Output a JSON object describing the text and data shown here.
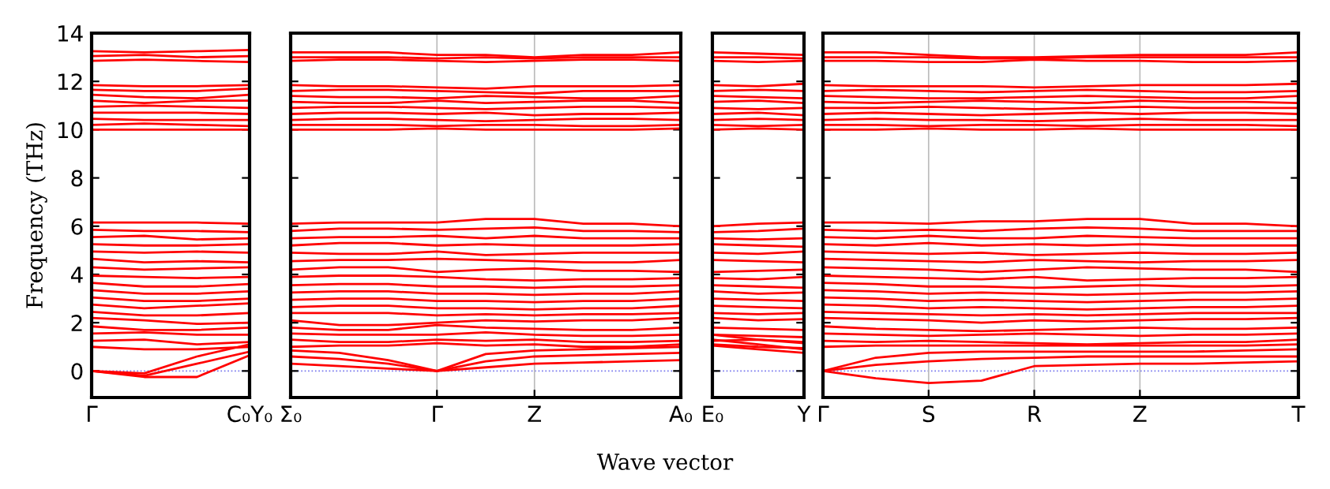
{
  "chart_data": [
    {
      "type": "line",
      "ylabel": "Frequency (THz)",
      "categories": [
        "Γ",
        null,
        null,
        "C₀Y₀"
      ],
      "ylim": [
        -1.1,
        14
      ],
      "yticks": [
        0,
        2,
        4,
        6,
        8,
        10,
        12,
        14
      ],
      "ref_lines": [
        {
          "axis": "y",
          "value": 0,
          "color": "#7777ee",
          "line_style": "dotted"
        }
      ],
      "series": [
        {
          "color": "#ff0000",
          "values": [
            13.25,
            13.2,
            13.25,
            13.3
          ]
        },
        {
          "color": "#ff0000",
          "values": [
            13.05,
            13.1,
            13.0,
            13.05
          ]
        },
        {
          "color": "#ff0000",
          "values": [
            12.85,
            12.9,
            12.85,
            12.8
          ]
        },
        {
          "color": "#ff0000",
          "values": [
            11.85,
            11.8,
            11.8,
            11.85
          ]
        },
        {
          "color": "#ff0000",
          "values": [
            11.65,
            11.6,
            11.6,
            11.7
          ]
        },
        {
          "color": "#ff0000",
          "values": [
            11.45,
            11.35,
            11.3,
            11.45
          ]
        },
        {
          "color": "#ff0000",
          "values": [
            11.2,
            11.1,
            11.2,
            11.2
          ]
        },
        {
          "color": "#ff0000",
          "values": [
            10.95,
            11.0,
            10.95,
            10.9
          ]
        },
        {
          "color": "#ff0000",
          "values": [
            10.7,
            10.7,
            10.7,
            10.65
          ]
        },
        {
          "color": "#ff0000",
          "values": [
            10.45,
            10.4,
            10.4,
            10.4
          ]
        },
        {
          "color": "#ff0000",
          "values": [
            10.2,
            10.25,
            10.2,
            10.15
          ]
        },
        {
          "color": "#ff0000",
          "values": [
            10.0,
            10.0,
            10.0,
            10.0
          ]
        },
        {
          "color": "#ff0000",
          "values": [
            6.15,
            6.15,
            6.15,
            6.1
          ]
        },
        {
          "color": "#ff0000",
          "values": [
            5.85,
            5.8,
            5.8,
            5.75
          ]
        },
        {
          "color": "#ff0000",
          "values": [
            5.55,
            5.6,
            5.45,
            5.5
          ]
        },
        {
          "color": "#ff0000",
          "values": [
            5.25,
            5.2,
            5.2,
            5.25
          ]
        },
        {
          "color": "#ff0000",
          "values": [
            4.95,
            4.9,
            4.95,
            4.9
          ]
        },
        {
          "color": "#ff0000",
          "values": [
            4.65,
            4.5,
            4.55,
            4.5
          ]
        },
        {
          "color": "#ff0000",
          "values": [
            4.3,
            4.2,
            4.25,
            4.3
          ]
        },
        {
          "color": "#ff0000",
          "values": [
            3.95,
            3.9,
            3.85,
            3.9
          ]
        },
        {
          "color": "#ff0000",
          "values": [
            3.65,
            3.5,
            3.5,
            3.6
          ]
        },
        {
          "color": "#ff0000",
          "values": [
            3.35,
            3.2,
            3.2,
            3.3
          ]
        },
        {
          "color": "#ff0000",
          "values": [
            3.05,
            2.9,
            2.9,
            3.0
          ]
        },
        {
          "color": "#ff0000",
          "values": [
            2.75,
            2.6,
            2.7,
            2.8
          ]
        },
        {
          "color": "#ff0000",
          "values": [
            2.45,
            2.3,
            2.3,
            2.4
          ]
        },
        {
          "color": "#ff0000",
          "values": [
            2.2,
            2.1,
            1.95,
            2.0
          ]
        },
        {
          "color": "#ff0000",
          "values": [
            1.85,
            1.7,
            1.7,
            1.8
          ]
        },
        {
          "color": "#ff0000",
          "values": [
            1.55,
            1.6,
            1.5,
            1.5
          ]
        },
        {
          "color": "#ff0000",
          "values": [
            1.25,
            1.3,
            1.1,
            1.2
          ]
        },
        {
          "color": "#ff0000",
          "values": [
            1.0,
            0.9,
            0.9,
            1.0
          ]
        },
        {
          "color": "#ff0000",
          "values": [
            0,
            -0.2,
            0.3,
            0.8
          ]
        },
        {
          "color": "#ff0000",
          "values": [
            0,
            -0.25,
            -0.25,
            0.65
          ]
        },
        {
          "color": "#ff0000",
          "values": [
            0,
            -0.1,
            0.6,
            1.1
          ]
        }
      ]
    },
    {
      "type": "line",
      "xlabel": "Wave vector",
      "tick_labels": "x",
      "categories": [
        "Σ₀",
        null,
        null,
        "Γ",
        null,
        "Z",
        null,
        null,
        "A₀"
      ],
      "ylim": [
        -1.1,
        14
      ],
      "yticks": [
        0,
        2,
        4,
        6,
        8,
        10,
        12,
        14
      ],
      "grid": "x",
      "ref_lines": [
        {
          "axis": "y",
          "value": 0,
          "color": "#7777ee",
          "line_style": "dotted"
        }
      ],
      "series": [
        {
          "color": "#ff0000",
          "values": [
            13.2,
            13.2,
            13.2,
            13.1,
            13.1,
            13.0,
            13.1,
            13.1,
            13.2
          ]
        },
        {
          "color": "#ff0000",
          "values": [
            13.0,
            13.0,
            13.0,
            12.95,
            13.0,
            12.95,
            13.0,
            13.0,
            13.0
          ]
        },
        {
          "color": "#ff0000",
          "values": [
            12.85,
            12.9,
            12.9,
            12.85,
            12.8,
            12.85,
            12.9,
            12.9,
            12.85
          ]
        },
        {
          "color": "#ff0000",
          "values": [
            11.85,
            11.8,
            11.8,
            11.75,
            11.7,
            11.8,
            11.8,
            11.8,
            11.85
          ]
        },
        {
          "color": "#ff0000",
          "values": [
            11.6,
            11.65,
            11.65,
            11.6,
            11.55,
            11.5,
            11.6,
            11.6,
            11.6
          ]
        },
        {
          "color": "#ff0000",
          "values": [
            11.4,
            11.35,
            11.35,
            11.3,
            11.4,
            11.35,
            11.3,
            11.3,
            11.4
          ]
        },
        {
          "color": "#ff0000",
          "values": [
            11.15,
            11.1,
            11.1,
            11.2,
            11.1,
            11.15,
            11.2,
            11.2,
            11.1
          ]
        },
        {
          "color": "#ff0000",
          "values": [
            10.9,
            10.95,
            10.95,
            10.9,
            10.85,
            10.9,
            10.95,
            10.95,
            10.9
          ]
        },
        {
          "color": "#ff0000",
          "values": [
            10.65,
            10.7,
            10.7,
            10.65,
            10.7,
            10.6,
            10.65,
            10.65,
            10.7
          ]
        },
        {
          "color": "#ff0000",
          "values": [
            10.4,
            10.45,
            10.45,
            10.4,
            10.35,
            10.4,
            10.45,
            10.45,
            10.4
          ]
        },
        {
          "color": "#ff0000",
          "values": [
            10.2,
            10.2,
            10.2,
            10.15,
            10.2,
            10.2,
            10.15,
            10.15,
            10.2
          ]
        },
        {
          "color": "#ff0000",
          "values": [
            10.0,
            10.0,
            10.0,
            10.05,
            10.0,
            10.0,
            10.0,
            10.0,
            10.05
          ]
        },
        {
          "color": "#ff0000",
          "values": [
            6.1,
            6.15,
            6.15,
            6.15,
            6.3,
            6.3,
            6.1,
            6.1,
            6.0
          ]
        },
        {
          "color": "#ff0000",
          "values": [
            5.8,
            5.9,
            5.9,
            5.85,
            5.9,
            5.95,
            5.8,
            5.8,
            5.75
          ]
        },
        {
          "color": "#ff0000",
          "values": [
            5.5,
            5.55,
            5.55,
            5.6,
            5.5,
            5.6,
            5.5,
            5.5,
            5.5
          ]
        },
        {
          "color": "#ff0000",
          "values": [
            5.2,
            5.3,
            5.3,
            5.2,
            5.25,
            5.2,
            5.2,
            5.2,
            5.25
          ]
        },
        {
          "color": "#ff0000",
          "values": [
            4.9,
            4.85,
            4.85,
            4.95,
            4.8,
            4.85,
            4.9,
            4.9,
            4.9
          ]
        },
        {
          "color": "#ff0000",
          "values": [
            4.55,
            4.6,
            4.6,
            4.65,
            4.6,
            4.55,
            4.5,
            4.5,
            4.6
          ]
        },
        {
          "color": "#ff0000",
          "values": [
            4.2,
            4.3,
            4.3,
            4.1,
            4.2,
            4.25,
            4.15,
            4.15,
            4.1
          ]
        },
        {
          "color": "#ff0000",
          "values": [
            3.9,
            3.95,
            3.95,
            3.9,
            3.8,
            3.75,
            3.8,
            3.8,
            3.85
          ]
        },
        {
          "color": "#ff0000",
          "values": [
            3.55,
            3.6,
            3.6,
            3.5,
            3.5,
            3.45,
            3.5,
            3.5,
            3.55
          ]
        },
        {
          "color": "#ff0000",
          "values": [
            3.25,
            3.3,
            3.3,
            3.2,
            3.2,
            3.15,
            3.2,
            3.2,
            3.3
          ]
        },
        {
          "color": "#ff0000",
          "values": [
            2.95,
            3.0,
            3.0,
            2.9,
            2.9,
            2.85,
            2.9,
            2.9,
            3.0
          ]
        },
        {
          "color": "#ff0000",
          "values": [
            2.65,
            2.7,
            2.7,
            2.6,
            2.6,
            2.55,
            2.6,
            2.6,
            2.7
          ]
        },
        {
          "color": "#ff0000",
          "values": [
            2.4,
            2.4,
            2.4,
            2.3,
            2.35,
            2.3,
            2.35,
            2.35,
            2.4
          ]
        },
        {
          "color": "#ff0000",
          "values": [
            2.1,
            1.9,
            1.9,
            2.0,
            2.1,
            2.05,
            2.1,
            2.1,
            2.2
          ]
        },
        {
          "color": "#ff0000",
          "values": [
            1.8,
            1.7,
            1.7,
            1.9,
            1.8,
            1.75,
            1.7,
            1.7,
            1.8
          ]
        },
        {
          "color": "#ff0000",
          "values": [
            1.55,
            1.5,
            1.5,
            1.5,
            1.6,
            1.5,
            1.45,
            1.45,
            1.5
          ]
        },
        {
          "color": "#ff0000",
          "values": [
            1.3,
            1.2,
            1.2,
            1.3,
            1.25,
            1.3,
            1.2,
            1.2,
            1.25
          ]
        },
        {
          "color": "#ff0000",
          "values": [
            1.0,
            1.05,
            1.05,
            1.15,
            1.05,
            1.1,
            1.0,
            1.0,
            1.1
          ]
        },
        {
          "color": "#ff0000",
          "values": [
            0.3,
            0.2,
            0.1,
            0,
            0.15,
            0.3,
            0.35,
            0.4,
            0.45
          ]
        },
        {
          "color": "#ff0000",
          "values": [
            0.6,
            0.5,
            0.3,
            0,
            0.4,
            0.6,
            0.65,
            0.7,
            0.75
          ]
        },
        {
          "color": "#ff0000",
          "values": [
            0.85,
            0.75,
            0.45,
            0,
            0.7,
            0.85,
            0.9,
            0.95,
            1.0
          ]
        }
      ]
    },
    {
      "type": "line",
      "tick_labels": "x",
      "categories": [
        "E₀",
        null,
        "Y"
      ],
      "ylim": [
        -1.1,
        14
      ],
      "yticks": [
        0,
        2,
        4,
        6,
        8,
        10,
        12,
        14
      ],
      "ref_lines": [
        {
          "axis": "y",
          "value": 0,
          "color": "#7777ee",
          "line_style": "dotted"
        }
      ],
      "series": [
        {
          "color": "#ff0000",
          "values": [
            13.2,
            13.15,
            13.1
          ]
        },
        {
          "color": "#ff0000",
          "values": [
            13.0,
            13.0,
            12.95
          ]
        },
        {
          "color": "#ff0000",
          "values": [
            12.85,
            12.8,
            12.85
          ]
        },
        {
          "color": "#ff0000",
          "values": [
            11.85,
            11.8,
            11.9
          ]
        },
        {
          "color": "#ff0000",
          "values": [
            11.6,
            11.65,
            11.6
          ]
        },
        {
          "color": "#ff0000",
          "values": [
            11.4,
            11.35,
            11.3
          ]
        },
        {
          "color": "#ff0000",
          "values": [
            11.15,
            11.2,
            11.1
          ]
        },
        {
          "color": "#ff0000",
          "values": [
            10.9,
            10.85,
            10.9
          ]
        },
        {
          "color": "#ff0000",
          "values": [
            10.65,
            10.7,
            10.6
          ]
        },
        {
          "color": "#ff0000",
          "values": [
            10.4,
            10.45,
            10.4
          ]
        },
        {
          "color": "#ff0000",
          "values": [
            10.2,
            10.15,
            10.2
          ]
        },
        {
          "color": "#ff0000",
          "values": [
            10.0,
            10.05,
            10.0
          ]
        },
        {
          "color": "#ff0000",
          "values": [
            6.0,
            6.1,
            6.15
          ]
        },
        {
          "color": "#ff0000",
          "values": [
            5.75,
            5.8,
            5.9
          ]
        },
        {
          "color": "#ff0000",
          "values": [
            5.5,
            5.45,
            5.5
          ]
        },
        {
          "color": "#ff0000",
          "values": [
            5.25,
            5.2,
            5.15
          ]
        },
        {
          "color": "#ff0000",
          "values": [
            4.9,
            4.85,
            4.95
          ]
        },
        {
          "color": "#ff0000",
          "values": [
            4.6,
            4.55,
            4.5
          ]
        },
        {
          "color": "#ff0000",
          "values": [
            4.1,
            4.15,
            4.2
          ]
        },
        {
          "color": "#ff0000",
          "values": [
            3.85,
            3.8,
            3.9
          ]
        },
        {
          "color": "#ff0000",
          "values": [
            3.55,
            3.5,
            3.45
          ]
        },
        {
          "color": "#ff0000",
          "values": [
            3.3,
            3.2,
            3.25
          ]
        },
        {
          "color": "#ff0000",
          "values": [
            3.0,
            2.95,
            2.9
          ]
        },
        {
          "color": "#ff0000",
          "values": [
            2.7,
            2.65,
            2.6
          ]
        },
        {
          "color": "#ff0000",
          "values": [
            2.4,
            2.35,
            2.4
          ]
        },
        {
          "color": "#ff0000",
          "values": [
            2.2,
            2.1,
            2.15
          ]
        },
        {
          "color": "#ff0000",
          "values": [
            1.8,
            1.75,
            1.7
          ]
        },
        {
          "color": "#ff0000",
          "values": [
            1.5,
            1.45,
            1.4
          ]
        },
        {
          "color": "#ff0000",
          "values": [
            1.25,
            1.3,
            1.2
          ]
        },
        {
          "color": "#ff0000",
          "values": [
            1.1,
            1.0,
            0.95
          ]
        },
        {
          "color": "#ff0000",
          "values": [
            1.3,
            1.1,
            0.9
          ]
        },
        {
          "color": "#ff0000",
          "values": [
            1.5,
            1.3,
            1.15
          ]
        },
        {
          "color": "#ff0000",
          "values": [
            1.05,
            0.9,
            0.75
          ]
        }
      ]
    },
    {
      "type": "line",
      "tick_labels": "x",
      "categories": [
        "Γ",
        null,
        "S",
        null,
        "R",
        null,
        "Z",
        null,
        null,
        "T"
      ],
      "ylim": [
        -1.1,
        14
      ],
      "yticks": [
        0,
        2,
        4,
        6,
        8,
        10,
        12,
        14
      ],
      "grid": "x",
      "ref_lines": [
        {
          "axis": "y",
          "value": 0,
          "color": "#7777ee",
          "line_style": "dotted"
        }
      ],
      "series": [
        {
          "color": "#ff0000",
          "values": [
            13.2,
            13.2,
            13.1,
            13.0,
            13.0,
            13.05,
            13.1,
            13.1,
            13.1,
            13.2
          ]
        },
        {
          "color": "#ff0000",
          "values": [
            13.0,
            13.0,
            13.0,
            12.95,
            12.95,
            13.0,
            13.0,
            13.0,
            13.0,
            13.0
          ]
        },
        {
          "color": "#ff0000",
          "values": [
            12.85,
            12.85,
            12.8,
            12.8,
            12.9,
            12.85,
            12.85,
            12.8,
            12.8,
            12.85
          ]
        },
        {
          "color": "#ff0000",
          "values": [
            11.85,
            11.8,
            11.8,
            11.8,
            11.75,
            11.8,
            11.85,
            11.85,
            11.85,
            11.9
          ]
        },
        {
          "color": "#ff0000",
          "values": [
            11.6,
            11.65,
            11.6,
            11.55,
            11.6,
            11.65,
            11.6,
            11.55,
            11.55,
            11.6
          ]
        },
        {
          "color": "#ff0000",
          "values": [
            11.4,
            11.35,
            11.3,
            11.3,
            11.35,
            11.4,
            11.35,
            11.3,
            11.3,
            11.4
          ]
        },
        {
          "color": "#ff0000",
          "values": [
            11.15,
            11.1,
            11.15,
            11.2,
            11.15,
            11.1,
            11.2,
            11.15,
            11.15,
            11.1
          ]
        },
        {
          "color": "#ff0000",
          "values": [
            10.9,
            10.9,
            10.95,
            10.9,
            10.85,
            10.9,
            10.95,
            10.9,
            10.9,
            10.9
          ]
        },
        {
          "color": "#ff0000",
          "values": [
            10.65,
            10.7,
            10.65,
            10.6,
            10.65,
            10.7,
            10.65,
            10.7,
            10.7,
            10.65
          ]
        },
        {
          "color": "#ff0000",
          "values": [
            10.4,
            10.45,
            10.4,
            10.4,
            10.35,
            10.4,
            10.45,
            10.4,
            10.4,
            10.4
          ]
        },
        {
          "color": "#ff0000",
          "values": [
            10.2,
            10.2,
            10.15,
            10.2,
            10.2,
            10.15,
            10.2,
            10.2,
            10.2,
            10.15
          ]
        },
        {
          "color": "#ff0000",
          "values": [
            10.0,
            10.0,
            10.05,
            10.0,
            10.0,
            10.05,
            10.0,
            10.0,
            10.0,
            10.0
          ]
        },
        {
          "color": "#ff0000",
          "values": [
            6.15,
            6.15,
            6.1,
            6.2,
            6.2,
            6.3,
            6.3,
            6.1,
            6.1,
            6.0
          ]
        },
        {
          "color": "#ff0000",
          "values": [
            5.85,
            5.8,
            5.85,
            5.8,
            5.9,
            5.95,
            5.9,
            5.8,
            5.8,
            5.8
          ]
        },
        {
          "color": "#ff0000",
          "values": [
            5.55,
            5.5,
            5.6,
            5.5,
            5.5,
            5.6,
            5.55,
            5.5,
            5.5,
            5.5
          ]
        },
        {
          "color": "#ff0000",
          "values": [
            5.25,
            5.2,
            5.3,
            5.2,
            5.25,
            5.2,
            5.25,
            5.2,
            5.2,
            5.2
          ]
        },
        {
          "color": "#ff0000",
          "values": [
            4.95,
            4.9,
            4.85,
            4.9,
            4.8,
            4.85,
            4.9,
            4.85,
            4.85,
            4.9
          ]
        },
        {
          "color": "#ff0000",
          "values": [
            4.65,
            4.6,
            4.55,
            4.5,
            4.6,
            4.55,
            4.5,
            4.55,
            4.55,
            4.6
          ]
        },
        {
          "color": "#ff0000",
          "values": [
            4.3,
            4.25,
            4.2,
            4.1,
            4.2,
            4.3,
            4.25,
            4.2,
            4.2,
            4.1
          ]
        },
        {
          "color": "#ff0000",
          "values": [
            3.95,
            3.9,
            3.85,
            3.8,
            3.9,
            3.75,
            3.8,
            3.85,
            3.85,
            3.9
          ]
        },
        {
          "color": "#ff0000",
          "values": [
            3.65,
            3.6,
            3.5,
            3.5,
            3.45,
            3.5,
            3.55,
            3.5,
            3.5,
            3.55
          ]
        },
        {
          "color": "#ff0000",
          "values": [
            3.35,
            3.3,
            3.2,
            3.25,
            3.2,
            3.15,
            3.2,
            3.25,
            3.25,
            3.3
          ]
        },
        {
          "color": "#ff0000",
          "values": [
            3.05,
            3.0,
            2.9,
            2.95,
            2.9,
            2.85,
            2.9,
            2.95,
            2.95,
            3.0
          ]
        },
        {
          "color": "#ff0000",
          "values": [
            2.75,
            2.7,
            2.6,
            2.65,
            2.6,
            2.55,
            2.6,
            2.65,
            2.65,
            2.7
          ]
        },
        {
          "color": "#ff0000",
          "values": [
            2.45,
            2.4,
            2.35,
            2.3,
            2.35,
            2.3,
            2.35,
            2.4,
            2.4,
            2.4
          ]
        },
        {
          "color": "#ff0000",
          "values": [
            2.2,
            2.15,
            2.1,
            2.0,
            2.1,
            2.05,
            2.1,
            2.15,
            2.15,
            2.2
          ]
        },
        {
          "color": "#ff0000",
          "values": [
            1.85,
            1.75,
            1.7,
            1.65,
            1.7,
            1.75,
            1.8,
            1.75,
            1.75,
            1.8
          ]
        },
        {
          "color": "#ff0000",
          "values": [
            1.55,
            1.5,
            1.45,
            1.5,
            1.55,
            1.5,
            1.45,
            1.5,
            1.5,
            1.55
          ]
        },
        {
          "color": "#ff0000",
          "values": [
            1.25,
            1.2,
            1.25,
            1.2,
            1.15,
            1.1,
            1.15,
            1.2,
            1.2,
            1.3
          ]
        },
        {
          "color": "#ff0000",
          "values": [
            1.0,
            1.05,
            1.05,
            1.05,
            1.05,
            1.05,
            1.05,
            1.05,
            1.05,
            1.1
          ]
        },
        {
          "color": "#ff0000",
          "values": [
            0,
            -0.3,
            -0.5,
            -0.4,
            0.2,
            0.25,
            0.3,
            0.3,
            0.35,
            0.4
          ]
        },
        {
          "color": "#ff0000",
          "values": [
            0,
            0.25,
            0.4,
            0.5,
            0.55,
            0.6,
            0.6,
            0.6,
            0.6,
            0.6
          ]
        },
        {
          "color": "#ff0000",
          "values": [
            0,
            0.55,
            0.75,
            0.8,
            0.8,
            0.8,
            0.8,
            0.8,
            0.85,
            0.9
          ]
        }
      ]
    }
  ]
}
